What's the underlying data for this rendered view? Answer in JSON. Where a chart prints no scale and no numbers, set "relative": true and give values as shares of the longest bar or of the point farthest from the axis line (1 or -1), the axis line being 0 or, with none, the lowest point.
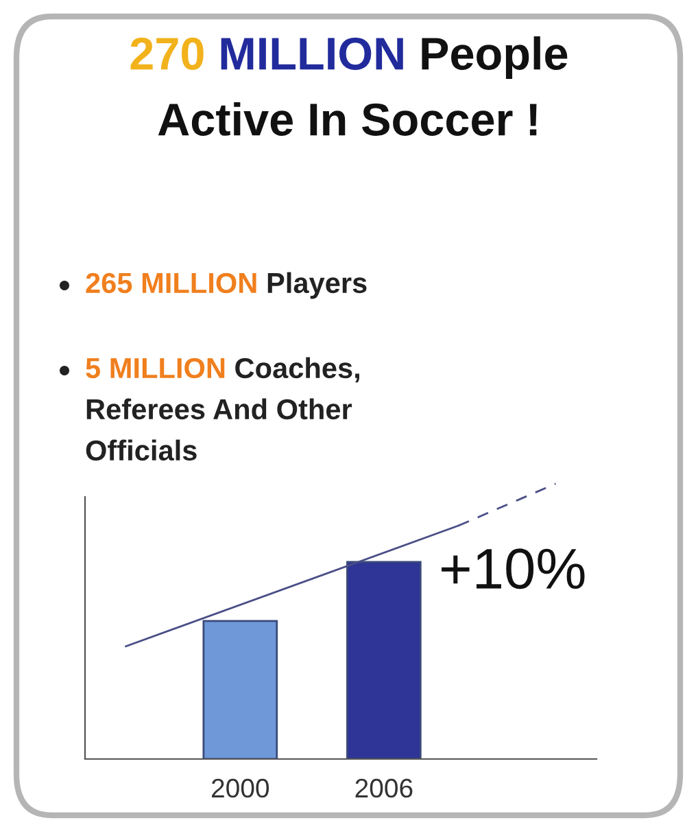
{
  "chart_data": {
    "type": "bar",
    "title": "270 MILLION People\nActive In Soccer !",
    "categories": [
      "2000",
      "2006"
    ],
    "values": [
      0.7,
      1
    ],
    "colors": [
      "#6f98d8",
      "#2e3596"
    ],
    "relative": true,
    "annotations": [
      "+10%",
      "265 MILLION Players",
      "5 MILLION Coaches,\nReferees And Other\nOfficials"
    ]
  }
}
